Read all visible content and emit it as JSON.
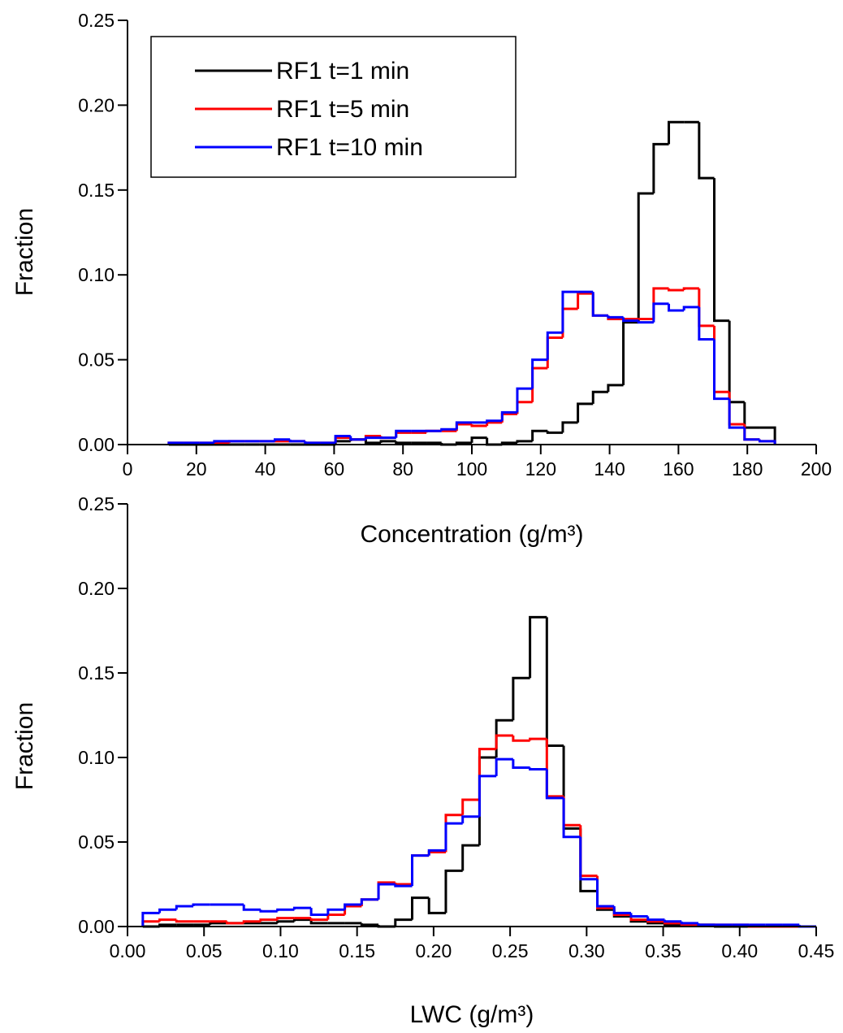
{
  "chart_data": [
    {
      "type": "histogram",
      "xlabel": "Concentration (g/m³)",
      "ylabel": "Fraction",
      "bins": [
        12,
        16.4,
        20.8,
        25.2,
        29.6,
        34,
        38.4,
        42.8,
        47.2,
        51.6,
        56,
        60.4,
        64.8,
        69.2,
        73.6,
        78,
        82.4,
        86.8,
        91.2,
        95.6,
        100,
        104.4,
        108.8,
        113.2,
        117.6,
        122,
        126.4,
        130.8,
        135.2,
        139.6,
        144,
        148.4,
        152.8,
        157.2,
        161.6,
        166,
        170.4,
        174.8,
        179.2,
        183.6,
        188
      ],
      "series": [
        {
          "name": "RF1 t=1 min",
          "color": "#000000",
          "values": [
            0,
            0,
            0,
            0,
            0,
            0,
            0,
            0,
            0,
            0,
            0,
            0.002,
            0.003,
            0.001,
            0.002,
            0.001,
            0.001,
            0.001,
            0,
            0.001,
            0.004,
            0,
            0.001,
            0.002,
            0.008,
            0.007,
            0.013,
            0.024,
            0.031,
            0.035,
            0.072,
            0.148,
            0.177,
            0.19,
            0.19,
            0.157,
            0.073,
            0.025,
            0.01,
            0.01
          ]
        },
        {
          "name": "RF1 t=5 min",
          "color": "#ff0000",
          "values": [
            0.001,
            0.001,
            0.001,
            0.001,
            0.002,
            0.002,
            0.002,
            0.002,
            0.002,
            0.001,
            0.001,
            0.004,
            0.003,
            0.005,
            0.004,
            0.007,
            0.007,
            0.008,
            0.008,
            0.012,
            0.011,
            0.013,
            0.018,
            0.025,
            0.045,
            0.063,
            0.08,
            0.089,
            0.076,
            0.074,
            0.074,
            0.074,
            0.092,
            0.091,
            0.092,
            0.07,
            0.031,
            0.012,
            0.003,
            0.002
          ]
        },
        {
          "name": "RF1 t=10 min",
          "color": "#0000ff",
          "values": [
            0.001,
            0.001,
            0.001,
            0.002,
            0.002,
            0.002,
            0.002,
            0.003,
            0.002,
            0.001,
            0.001,
            0.005,
            0.003,
            0.004,
            0.004,
            0.008,
            0.008,
            0.008,
            0.009,
            0.013,
            0.013,
            0.014,
            0.019,
            0.033,
            0.05,
            0.066,
            0.09,
            0.09,
            0.076,
            0.075,
            0.073,
            0.072,
            0.083,
            0.079,
            0.081,
            0.062,
            0.027,
            0.01,
            0.003,
            0.002
          ]
        }
      ],
      "legend": "upper left",
      "xlim": [
        0,
        200
      ],
      "xticks": [
        0,
        20,
        40,
        60,
        80,
        100,
        120,
        140,
        160,
        180,
        200
      ],
      "ylim": [
        0,
        0.25
      ],
      "yticks": [
        {
          "value": 0,
          "label": "0.00"
        },
        {
          "value": 0.05,
          "label": "0.05"
        },
        {
          "value": 0.1,
          "label": "0.10"
        },
        {
          "value": 0.15,
          "label": "0.15"
        },
        {
          "value": 0.2,
          "label": "0.20"
        },
        {
          "value": 0.25,
          "label": "0.25"
        }
      ]
    },
    {
      "type": "histogram",
      "xlabel": "LWC (g/m³)",
      "ylabel": "Fraction",
      "bins": [
        0.01,
        0.021,
        0.032,
        0.043,
        0.054,
        0.065,
        0.076,
        0.087,
        0.098,
        0.109,
        0.12,
        0.131,
        0.142,
        0.153,
        0.164,
        0.175,
        0.186,
        0.197,
        0.208,
        0.219,
        0.23,
        0.241,
        0.252,
        0.263,
        0.274,
        0.285,
        0.296,
        0.307,
        0.318,
        0.329,
        0.34,
        0.351,
        0.362,
        0.373,
        0.384,
        0.395,
        0.406,
        0.417,
        0.428,
        0.439,
        0.45
      ],
      "series": [
        {
          "color": "#000000",
          "values": [
            0,
            0.001,
            0.001,
            0.001,
            0.002,
            0.002,
            0.002,
            0.002,
            0.003,
            0.004,
            0.002,
            0.002,
            0.002,
            0.001,
            0,
            0.004,
            0.017,
            0.008,
            0.033,
            0.048,
            0.1,
            0.122,
            0.147,
            0.183,
            0.107,
            0.058,
            0.021,
            0.01,
            0.006,
            0.003,
            0.002,
            0.001,
            0.001,
            0.001,
            0,
            0,
            0,
            0,
            0,
            0
          ]
        },
        {
          "color": "#ff0000",
          "values": [
            0.003,
            0.004,
            0.003,
            0.003,
            0.003,
            0.002,
            0.003,
            0.004,
            0.005,
            0.005,
            0.004,
            0.007,
            0.012,
            0.016,
            0.026,
            0.025,
            0.042,
            0.044,
            0.066,
            0.075,
            0.105,
            0.113,
            0.11,
            0.111,
            0.077,
            0.06,
            0.03,
            0.011,
            0.007,
            0.004,
            0.003,
            0.002,
            0.001,
            0.001,
            0.001,
            0.001,
            0,
            0,
            0,
            0
          ]
        },
        {
          "color": "#0000ff",
          "values": [
            0.008,
            0.01,
            0.012,
            0.013,
            0.013,
            0.013,
            0.01,
            0.009,
            0.01,
            0.011,
            0.007,
            0.01,
            0.013,
            0.016,
            0.025,
            0.024,
            0.042,
            0.045,
            0.061,
            0.065,
            0.089,
            0.099,
            0.094,
            0.093,
            0.076,
            0.053,
            0.028,
            0.012,
            0.008,
            0.006,
            0.004,
            0.003,
            0.002,
            0.001,
            0.001,
            0.001,
            0.001,
            0.001,
            0.001,
            0
          ]
        }
      ],
      "xlim": [
        0,
        0.45
      ],
      "xticks": [
        {
          "value": 0,
          "label": "0.00"
        },
        {
          "value": 0.05,
          "label": "0.05"
        },
        {
          "value": 0.1,
          "label": "0.10"
        },
        {
          "value": 0.15,
          "label": "0.15"
        },
        {
          "value": 0.2,
          "label": "0.20"
        },
        {
          "value": 0.25,
          "label": "0.25"
        },
        {
          "value": 0.3,
          "label": "0.30"
        },
        {
          "value": 0.35,
          "label": "0.35"
        },
        {
          "value": 0.4,
          "label": "0.40"
        },
        {
          "value": 0.45,
          "label": "0.45"
        }
      ],
      "ylim": [
        0,
        0.25
      ],
      "yticks": [
        {
          "value": 0,
          "label": "0.00"
        },
        {
          "value": 0.05,
          "label": "0.05"
        },
        {
          "value": 0.1,
          "label": "0.10"
        },
        {
          "value": 0.15,
          "label": "0.15"
        },
        {
          "value": 0.2,
          "label": "0.20"
        },
        {
          "value": 0.25,
          "label": "0.25"
        }
      ]
    }
  ]
}
